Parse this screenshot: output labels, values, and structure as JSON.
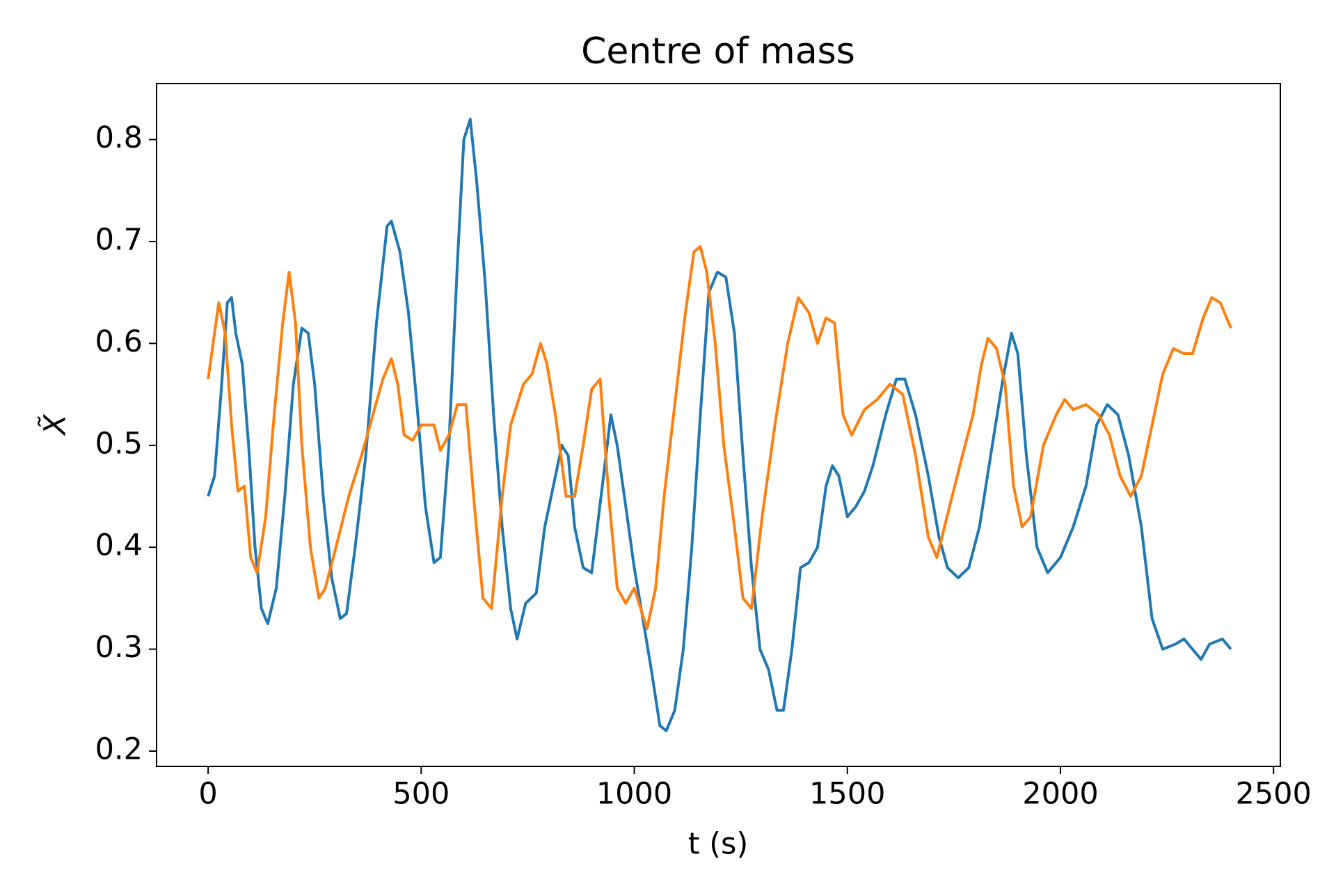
{
  "chart_data": {
    "type": "line",
    "title": "Centre of mass",
    "x_label": "t (s)",
    "y_label": "X̃",
    "xlim": [
      -121,
      2516
    ],
    "ylim": [
      0.185,
      0.855
    ],
    "xticks": [
      0,
      500,
      1000,
      1500,
      2000,
      2500
    ],
    "yticks": [
      0.2,
      0.3,
      0.4,
      0.5,
      0.6,
      0.7,
      0.8
    ],
    "series": [
      {
        "color": "#1f77b4",
        "x": [
          0,
          15,
          30,
          45,
          55,
          65,
          80,
          95,
          110,
          125,
          140,
          160,
          180,
          200,
          220,
          235,
          250,
          270,
          290,
          310,
          325,
          345,
          370,
          395,
          420,
          430,
          450,
          470,
          490,
          510,
          530,
          545,
          565,
          585,
          600,
          615,
          630,
          650,
          670,
          690,
          710,
          725,
          745,
          770,
          790,
          810,
          830,
          845,
          860,
          880,
          900,
          925,
          945,
          960,
          980,
          1000,
          1020,
          1040,
          1060,
          1075,
          1095,
          1115,
          1135,
          1155,
          1175,
          1195,
          1215,
          1235,
          1255,
          1275,
          1295,
          1315,
          1335,
          1350,
          1370,
          1390,
          1410,
          1430,
          1450,
          1465,
          1480,
          1500,
          1520,
          1540,
          1560,
          1590,
          1615,
          1635,
          1660,
          1690,
          1715,
          1735,
          1760,
          1785,
          1810,
          1840,
          1865,
          1885,
          1900,
          1920,
          1945,
          1970,
          2000,
          2030,
          2060,
          2085,
          2110,
          2135,
          2160,
          2190,
          2215,
          2240,
          2270,
          2290,
          2310,
          2330,
          2350,
          2380,
          2400
        ],
        "values": [
          0.45,
          0.47,
          0.55,
          0.64,
          0.645,
          0.61,
          0.58,
          0.5,
          0.4,
          0.34,
          0.325,
          0.36,
          0.45,
          0.56,
          0.615,
          0.61,
          0.56,
          0.45,
          0.37,
          0.33,
          0.335,
          0.4,
          0.49,
          0.62,
          0.715,
          0.72,
          0.69,
          0.63,
          0.54,
          0.44,
          0.385,
          0.39,
          0.5,
          0.68,
          0.8,
          0.82,
          0.76,
          0.66,
          0.53,
          0.42,
          0.34,
          0.31,
          0.345,
          0.355,
          0.42,
          0.46,
          0.5,
          0.49,
          0.42,
          0.38,
          0.375,
          0.46,
          0.53,
          0.5,
          0.44,
          0.38,
          0.33,
          0.28,
          0.225,
          0.22,
          0.24,
          0.3,
          0.4,
          0.53,
          0.65,
          0.67,
          0.665,
          0.61,
          0.49,
          0.38,
          0.3,
          0.28,
          0.24,
          0.24,
          0.3,
          0.38,
          0.385,
          0.4,
          0.46,
          0.48,
          0.47,
          0.43,
          0.44,
          0.455,
          0.48,
          0.53,
          0.565,
          0.565,
          0.53,
          0.47,
          0.41,
          0.38,
          0.37,
          0.38,
          0.42,
          0.5,
          0.565,
          0.61,
          0.59,
          0.49,
          0.4,
          0.375,
          0.39,
          0.42,
          0.46,
          0.52,
          0.54,
          0.53,
          0.49,
          0.42,
          0.33,
          0.3,
          0.305,
          0.31,
          0.3,
          0.29,
          0.305,
          0.31,
          0.3
        ]
      },
      {
        "color": "#ff7f0e",
        "x": [
          0,
          15,
          25,
          40,
          55,
          70,
          85,
          100,
          115,
          135,
          155,
          175,
          190,
          205,
          220,
          240,
          260,
          275,
          300,
          330,
          360,
          390,
          410,
          430,
          445,
          460,
          480,
          500,
          530,
          545,
          565,
          585,
          605,
          625,
          645,
          665,
          690,
          710,
          740,
          760,
          780,
          795,
          815,
          840,
          860,
          880,
          900,
          920,
          940,
          960,
          980,
          1000,
          1015,
          1030,
          1050,
          1070,
          1095,
          1120,
          1140,
          1155,
          1170,
          1190,
          1210,
          1235,
          1255,
          1275,
          1300,
          1330,
          1360,
          1385,
          1410,
          1430,
          1450,
          1470,
          1490,
          1510,
          1540,
          1570,
          1600,
          1630,
          1660,
          1690,
          1710,
          1740,
          1770,
          1795,
          1815,
          1830,
          1850,
          1870,
          1890,
          1910,
          1930,
          1960,
          1990,
          2010,
          2030,
          2060,
          2090,
          2115,
          2140,
          2165,
          2190,
          2215,
          2240,
          2265,
          2290,
          2310,
          2335,
          2355,
          2375,
          2400
        ],
        "values": [
          0.565,
          0.61,
          0.64,
          0.61,
          0.52,
          0.455,
          0.46,
          0.39,
          0.375,
          0.43,
          0.53,
          0.62,
          0.67,
          0.62,
          0.5,
          0.4,
          0.35,
          0.36,
          0.4,
          0.45,
          0.49,
          0.535,
          0.565,
          0.585,
          0.56,
          0.51,
          0.505,
          0.52,
          0.52,
          0.495,
          0.51,
          0.54,
          0.54,
          0.44,
          0.35,
          0.34,
          0.45,
          0.52,
          0.56,
          0.57,
          0.6,
          0.58,
          0.53,
          0.45,
          0.45,
          0.5,
          0.555,
          0.565,
          0.45,
          0.36,
          0.345,
          0.36,
          0.34,
          0.32,
          0.36,
          0.45,
          0.54,
          0.63,
          0.69,
          0.695,
          0.67,
          0.6,
          0.5,
          0.42,
          0.35,
          0.34,
          0.43,
          0.52,
          0.6,
          0.645,
          0.63,
          0.6,
          0.625,
          0.62,
          0.53,
          0.51,
          0.535,
          0.545,
          0.56,
          0.55,
          0.49,
          0.41,
          0.39,
          0.44,
          0.49,
          0.53,
          0.58,
          0.605,
          0.595,
          0.56,
          0.46,
          0.42,
          0.43,
          0.5,
          0.53,
          0.545,
          0.535,
          0.54,
          0.53,
          0.51,
          0.47,
          0.45,
          0.47,
          0.52,
          0.57,
          0.595,
          0.59,
          0.59,
          0.625,
          0.645,
          0.64,
          0.615
        ]
      }
    ]
  }
}
